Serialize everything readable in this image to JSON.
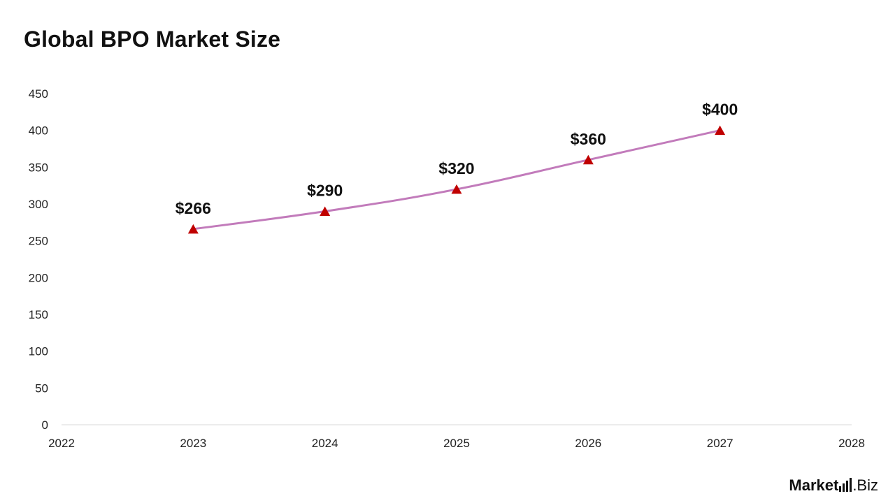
{
  "chart_data": {
    "type": "line",
    "title": "Global BPO Market Size",
    "xlabel": "",
    "ylabel": "",
    "x_ticks": [
      "2022",
      "2023",
      "2024",
      "2025",
      "2026",
      "2027",
      "2028"
    ],
    "xlim": [
      2022,
      2028
    ],
    "y_ticks": [
      "0",
      "50",
      "100",
      "150",
      "200",
      "250",
      "300",
      "350",
      "400",
      "450"
    ],
    "ylim": [
      0,
      450
    ],
    "grid": false,
    "legend": "none",
    "series": [
      {
        "x": [
          2023,
          2024,
          2025,
          2026,
          2027
        ],
        "values": [
          266,
          290,
          320,
          360,
          400
        ],
        "labels": [
          "$266",
          "$290",
          "$320",
          "$360",
          "$400"
        ],
        "line_color": "#c27bbb",
        "marker": "triangle",
        "marker_color": "#c00000"
      }
    ]
  },
  "brand": {
    "name": "Market",
    "suffix": ".Biz",
    "logo_icon": "bar-chart-icon"
  }
}
